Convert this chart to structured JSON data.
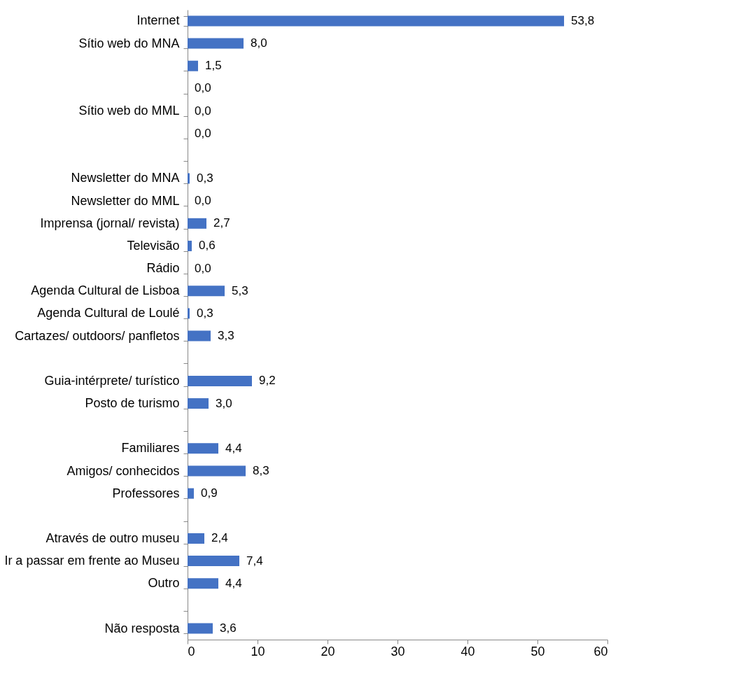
{
  "chart_data": {
    "type": "bar",
    "orientation": "horizontal",
    "categories": [
      "Internet",
      "Sítio web do MNA",
      null,
      null,
      "Sítio web do MML",
      null,
      null,
      "Newsletter do MNA",
      "Newsletter do MML",
      "Imprensa (jornal/ revista)",
      "Televisão",
      "Rádio",
      "Agenda Cultural de Lisboa",
      "Agenda Cultural de Loulé",
      "Cartazes/ outdoors/ panfletos",
      null,
      "Guia-intérprete/ turístico",
      "Posto de turismo",
      null,
      "Familiares",
      "Amigos/ conhecidos",
      "Professores",
      null,
      "Através de outro museu",
      "Ir a passar em frente ao Museu",
      "Outro",
      null,
      "Não resposta"
    ],
    "values": [
      53.8,
      8.0,
      1.5,
      0.0,
      0.0,
      0.0,
      null,
      0.3,
      0.0,
      2.7,
      0.6,
      0.0,
      5.3,
      0.3,
      3.3,
      null,
      9.2,
      3.0,
      null,
      4.4,
      8.3,
      0.9,
      null,
      2.4,
      7.4,
      4.4,
      null,
      3.6
    ],
    "value_labels": [
      "53,8",
      "8,0",
      "1,5",
      "0,0",
      "0,0",
      "0,0",
      null,
      "0,3",
      "0,0",
      "2,7",
      "0,6",
      "0,0",
      "5,3",
      "0,3",
      "3,3",
      null,
      "9,2",
      "3,0",
      null,
      "4,4",
      "8,3",
      "0,9",
      null,
      "2,4",
      "7,4",
      "4,4",
      null,
      "3,6"
    ],
    "color": "#4472c4",
    "xlim": [
      0,
      60
    ],
    "xticks": [
      0,
      10,
      20,
      30,
      40,
      50,
      60
    ],
    "grid": false
  }
}
